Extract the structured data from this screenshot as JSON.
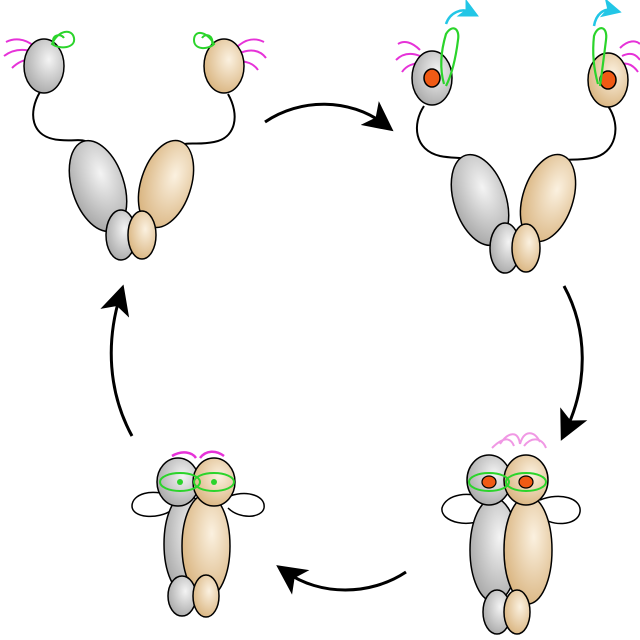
{
  "diagram": {
    "colors": {
      "background": "#ffffff",
      "outline": "#000000",
      "grey_light": "#f4f4f4",
      "grey_dark": "#a6a6a6",
      "tan_light": "#fbf1e0",
      "tan_dark": "#d8b27c",
      "magenta": "#e632d8",
      "pink": "#f098e4",
      "green": "#2bd42b",
      "cyan": "#22c6e6",
      "orange": "#f05a14",
      "arrow": "#000000"
    },
    "states": [
      {
        "name": "open-inactive",
        "head_dots": false,
        "heads_joined": false
      },
      {
        "name": "open-active",
        "head_dots": true,
        "heads_joined": false
      },
      {
        "name": "closed-active",
        "head_dots": true,
        "heads_joined": true
      },
      {
        "name": "closed-inactive",
        "head_dots": false,
        "heads_joined": true
      }
    ],
    "cycle_arrows": [
      "top",
      "right",
      "bottom",
      "left"
    ]
  }
}
